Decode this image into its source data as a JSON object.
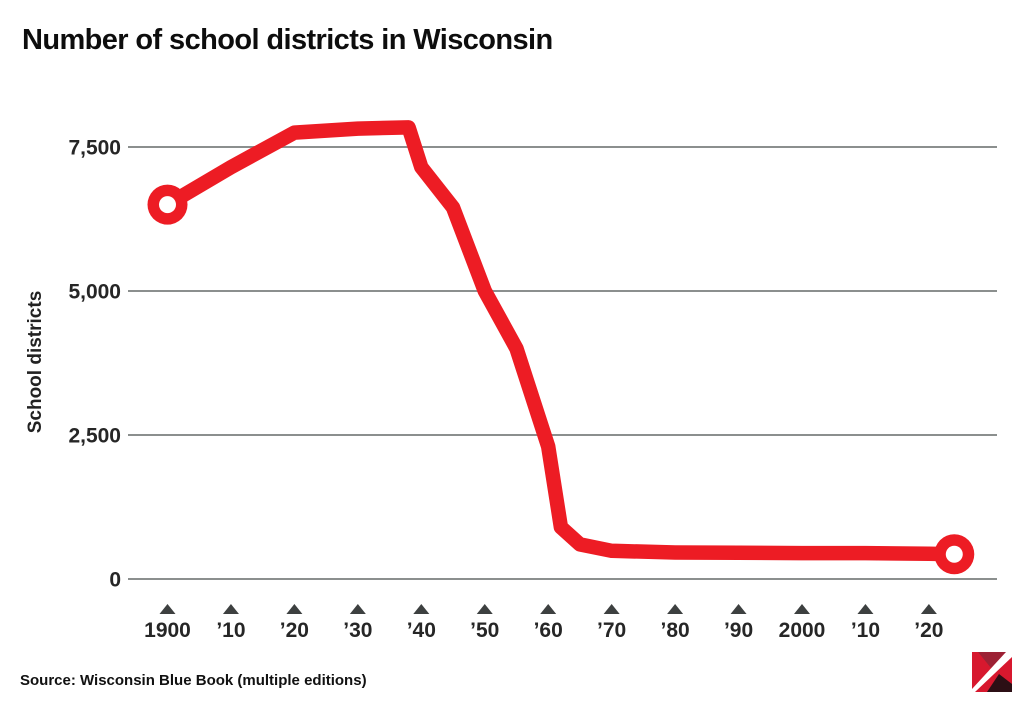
{
  "page": {
    "background": "#ffffff"
  },
  "chart_data": {
    "type": "line",
    "title": "Number of school districts in Wisconsin",
    "ylabel": "School districts",
    "source_note": "Source: Wisconsin Blue Book (multiple editions)",
    "grid": "horizontal",
    "legend": "none",
    "xlim": [
      1894,
      2031
    ],
    "ylim": [
      0,
      8100
    ],
    "y_ticks": [
      {
        "value": 0,
        "label": "0"
      },
      {
        "value": 2500,
        "label": "2,500"
      },
      {
        "value": 5000,
        "label": "5,000"
      },
      {
        "value": 7500,
        "label": "7,500"
      }
    ],
    "x_ticks": [
      {
        "year": 1900,
        "label": "1900"
      },
      {
        "year": 1910,
        "label": "’10"
      },
      {
        "year": 1920,
        "label": "’20"
      },
      {
        "year": 1930,
        "label": "’30"
      },
      {
        "year": 1940,
        "label": "’40"
      },
      {
        "year": 1950,
        "label": "’50"
      },
      {
        "year": 1960,
        "label": "’60"
      },
      {
        "year": 1970,
        "label": "’70"
      },
      {
        "year": 1980,
        "label": "’80"
      },
      {
        "year": 1990,
        "label": "’90"
      },
      {
        "year": 2000,
        "label": "2000"
      },
      {
        "year": 2010,
        "label": "’10"
      },
      {
        "year": 2020,
        "label": "’20"
      }
    ],
    "series": [
      {
        "name": "School districts",
        "color": "#ed1c24",
        "endpoint_markers": "open-circle",
        "points": [
          [
            1900,
            6500
          ],
          [
            1910,
            7150
          ],
          [
            1920,
            7750
          ],
          [
            1930,
            7820
          ],
          [
            1938,
            7840
          ],
          [
            1940,
            7150
          ],
          [
            1945,
            6450
          ],
          [
            1950,
            5000
          ],
          [
            1955,
            4000
          ],
          [
            1960,
            2300
          ],
          [
            1962,
            900
          ],
          [
            1965,
            600
          ],
          [
            1970,
            490
          ],
          [
            1980,
            460
          ],
          [
            1990,
            455
          ],
          [
            2000,
            450
          ],
          [
            2010,
            450
          ],
          [
            2020,
            440
          ],
          [
            2024,
            430
          ]
        ]
      }
    ]
  },
  "colors": {
    "accent_red": "#ed1c24",
    "gridline": "#8b8f8e",
    "tick_marker": "#3d4040",
    "text": "#1a1a1a"
  },
  "logo": {
    "name": "publisher-logo",
    "colors": {
      "bright_red": "#d7182e",
      "dark_crimson": "#9c2134",
      "dark": "#2c0f15",
      "white": "#ffffff"
    }
  }
}
